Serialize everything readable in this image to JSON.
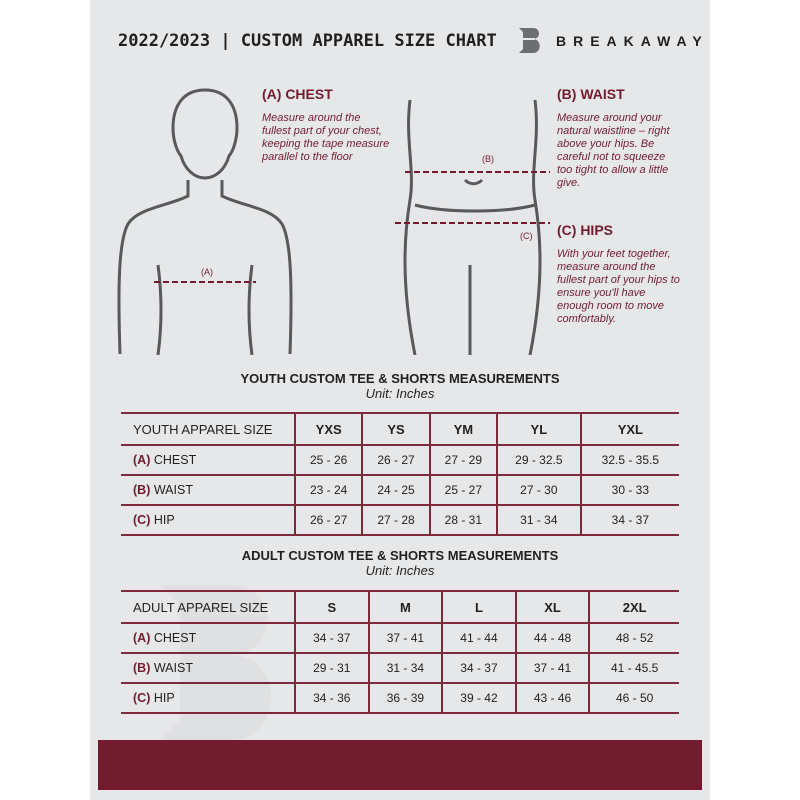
{
  "header": {
    "title": "2022/2023 | CUSTOM APPAREL SIZE CHART",
    "brand": "BREAKAWAY"
  },
  "chest": {
    "heading": "(A) CHEST",
    "text": "Measure around the fullest part of your chest, keeping the tape measure parallel to the floor",
    "marker": "(A)"
  },
  "waist": {
    "heading": "(B) WAIST",
    "text": "Measure around your natural waistline – right above your hips. Be careful not to squeeze too tight to allow a little give.",
    "marker": "(B)"
  },
  "hips": {
    "heading": "(C) HIPS",
    "text": "With your feet together, measure around the fullest part of your hips to ensure you'll have enough room to move comfortably.",
    "marker": "(C)"
  },
  "youth": {
    "title": "YOUTH CUSTOM TEE & SHORTS MEASUREMENTS",
    "unit": "Unit: Inches",
    "size_label": "YOUTH APPAREL SIZE",
    "sizes": [
      "YXS",
      "YS",
      "YM",
      "YL",
      "YXL"
    ],
    "rows": [
      {
        "code": "(A)",
        "name": "CHEST",
        "values": [
          "25 - 26",
          "26 - 27",
          "27 - 29",
          "29 - 32.5",
          "32.5 - 35.5"
        ]
      },
      {
        "code": "(B)",
        "name": "WAIST",
        "values": [
          "23 - 24",
          "24 - 25",
          "25 - 27",
          "27 - 30",
          "30 - 33"
        ]
      },
      {
        "code": "(C)",
        "name": "HIP",
        "values": [
          "26 - 27",
          "27 - 28",
          "28 - 31",
          "31 - 34",
          "34 - 37"
        ]
      }
    ]
  },
  "adult": {
    "title": "ADULT CUSTOM TEE & SHORTS MEASUREMENTS",
    "unit": "Unit: Inches",
    "size_label": "ADULT APPAREL SIZE",
    "sizes": [
      "S",
      "M",
      "L",
      "XL",
      "2XL"
    ],
    "rows": [
      {
        "code": "(A)",
        "name": "CHEST",
        "values": [
          "34 - 37",
          "37 - 41",
          "41 - 44",
          "44 - 48",
          "48 - 52"
        ]
      },
      {
        "code": "(B)",
        "name": "WAIST",
        "values": [
          "29 - 31",
          "31 - 34",
          "34 - 37",
          "37 - 41",
          "41 - 45.5"
        ]
      },
      {
        "code": "(C)",
        "name": "HIP",
        "values": [
          "34 - 36",
          "36 - 39",
          "39 - 42",
          "43 - 46",
          "46 - 50"
        ]
      }
    ]
  },
  "colors": {
    "accent": "#731c30",
    "background": "#e6e7e8"
  }
}
